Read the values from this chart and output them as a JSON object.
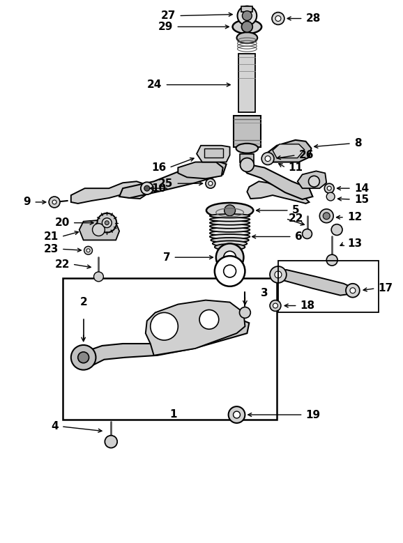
{
  "bg_color": "#ffffff",
  "line_color": "#000000",
  "fig_width": 5.78,
  "fig_height": 7.79,
  "dpi": 100
}
